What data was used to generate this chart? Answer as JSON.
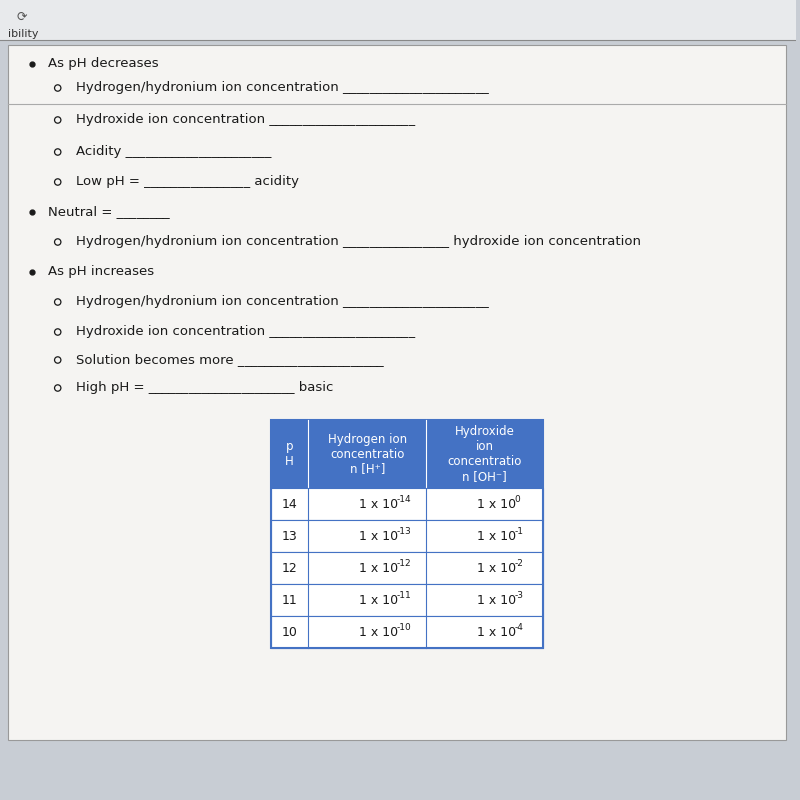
{
  "outer_bg": "#c8cdd4",
  "top_bar_bg": "#e8eaec",
  "panel_bg": "#f0efed",
  "panel_bg2": "#edecea",
  "separator_color": "#888888",
  "body_text_color": "#1a1a1a",
  "bullet_points": [
    {
      "level": 1,
      "text": "As pH decreases"
    },
    {
      "level": 2,
      "text": "Hydrogen/hydronium ion concentration ______________________"
    },
    {
      "level": 2,
      "text": "Hydroxide ion concentration ______________________"
    },
    {
      "level": 2,
      "text": "Acidity ______________________"
    },
    {
      "level": 2,
      "text": "Low pH = ________________ acidity"
    },
    {
      "level": 1,
      "text": "Neutral = ________"
    },
    {
      "level": 2,
      "text": "Hydrogen/hydronium ion concentration ________________ hydroxide ion concentration"
    },
    {
      "level": 1,
      "text": "As pH increases"
    },
    {
      "level": 2,
      "text": "Hydrogen/hydronium ion concentration ______________________"
    },
    {
      "level": 2,
      "text": "Hydroxide ion concentration ______________________"
    },
    {
      "level": 2,
      "text": "Solution becomes more ______________________"
    },
    {
      "level": 2,
      "text": "High pH = ______________________ basic"
    }
  ],
  "table_col1_header": "p\nH",
  "table_col2_header": "Hydrogen ion\nconcentratio\nn [H⁺]",
  "table_col3_header": "Hydroxide\nion\nconcentratio\nn [OH⁻]",
  "table_header_color": "#4472c4",
  "table_header_text_color": "#ffffff",
  "table_row_color": "#ffffff",
  "table_border_color": "#4472c4",
  "table_data": [
    [
      "14",
      "-14",
      "0"
    ],
    [
      "13",
      "-13",
      "-1"
    ],
    [
      "12",
      "-12",
      "-2"
    ],
    [
      "11",
      "-11",
      "-3"
    ],
    [
      "10",
      "-10",
      "-4"
    ]
  ],
  "font_size_bullet": 9.5,
  "font_size_table_header": 8.5,
  "font_size_table_data": 9
}
